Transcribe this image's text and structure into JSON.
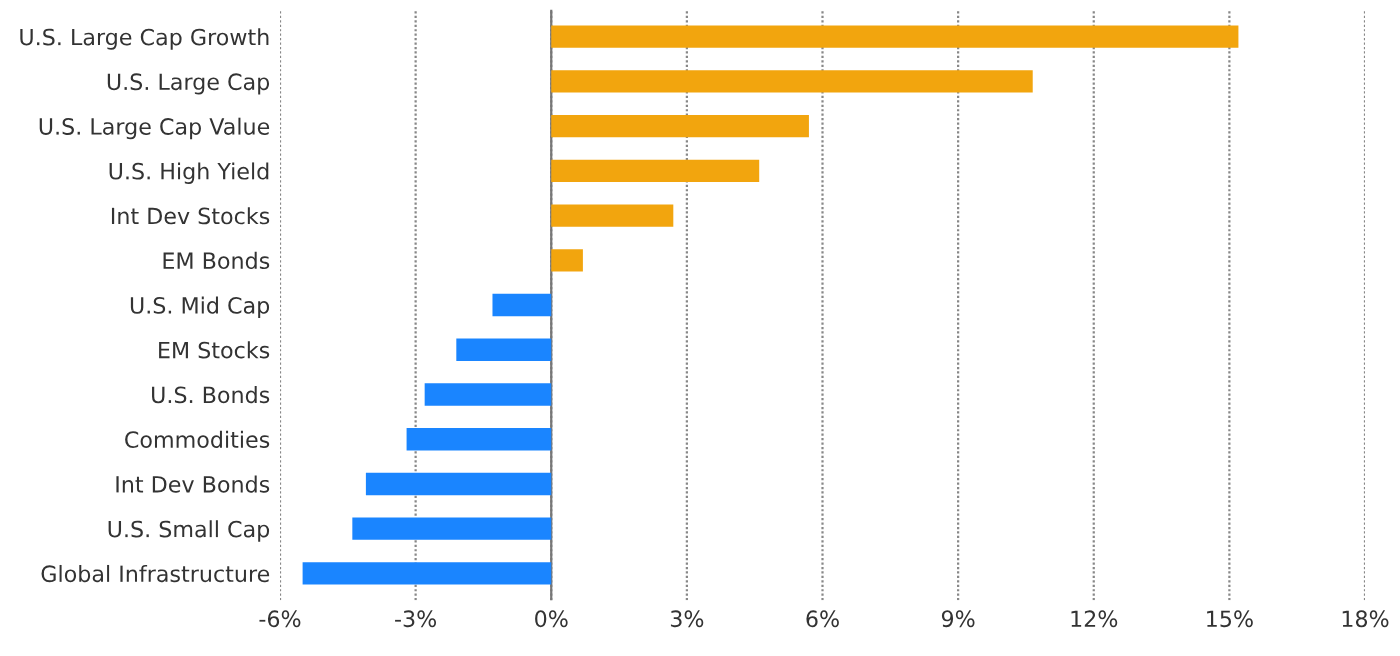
{
  "chart_data": {
    "type": "bar",
    "orientation": "horizontal",
    "categories": [
      "U.S. Large Cap Growth",
      "U.S. Large Cap",
      "U.S. Large Cap Value",
      "U.S. High Yield",
      "Int Dev Stocks",
      "EM Bonds",
      "U.S. Mid Cap",
      "EM Stocks",
      "U.S. Bonds",
      "Commodities",
      "Int Dev Bonds",
      "U.S. Small Cap",
      "Global Infrastructure"
    ],
    "values": [
      15.2,
      10.65,
      5.7,
      4.6,
      2.7,
      0.7,
      -1.3,
      -2.1,
      -2.8,
      -3.2,
      -4.1,
      -4.4,
      -5.5
    ],
    "colors": [
      "#f2a50e",
      "#f2a50e",
      "#f2a50e",
      "#f2a50e",
      "#f2a50e",
      "#f2a50e",
      "#1a85ff",
      "#1a85ff",
      "#1a85ff",
      "#1a85ff",
      "#1a85ff",
      "#1a85ff",
      "#1a85ff"
    ],
    "xlim": [
      -6,
      18
    ],
    "xticks": [
      {
        "value": -6,
        "label": "-6%"
      },
      {
        "value": -3,
        "label": "-3%"
      },
      {
        "value": 0,
        "label": "0%"
      },
      {
        "value": 3,
        "label": "3%"
      },
      {
        "value": 6,
        "label": "6%"
      },
      {
        "value": 9,
        "label": "9%"
      },
      {
        "value": 12,
        "label": "12%"
      },
      {
        "value": 15,
        "label": "15%"
      },
      {
        "value": 18,
        "label": "18%"
      }
    ],
    "grid": "x"
  }
}
